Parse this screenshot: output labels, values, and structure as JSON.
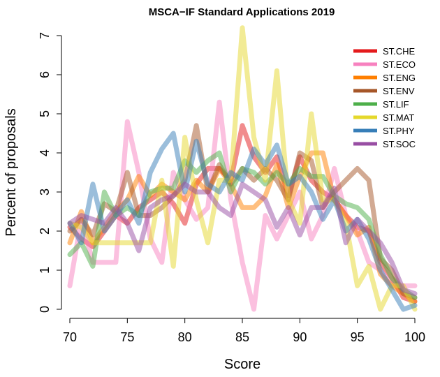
{
  "chart_data": {
    "type": "line",
    "title": "MSCA−IF Standard Applications 2019",
    "xlabel": "Score",
    "ylabel": "Percent of proposals",
    "xlim": [
      70,
      100
    ],
    "ylim": [
      0,
      7
    ],
    "x_ticks": [
      "70",
      "75",
      "80",
      "85",
      "90",
      "95",
      "100"
    ],
    "y_ticks": [
      "0",
      "1",
      "2",
      "3",
      "4",
      "5",
      "6",
      "7"
    ],
    "grid": false,
    "legend_position": "top-right",
    "x": [
      70,
      71,
      72,
      73,
      74,
      75,
      76,
      77,
      78,
      79,
      80,
      81,
      82,
      83,
      84,
      85,
      86,
      87,
      88,
      89,
      90,
      91,
      92,
      93,
      94,
      95,
      96,
      97,
      98,
      99,
      100
    ],
    "series": [
      {
        "name": "ST.CHE",
        "color": "#e41a1c",
        "values": [
          2.1,
          1.8,
          1.6,
          2.0,
          2.4,
          2.2,
          2.6,
          2.8,
          3.0,
          2.7,
          2.2,
          3.2,
          3.6,
          3.6,
          3.3,
          4.7,
          3.9,
          3.5,
          3.9,
          2.9,
          3.9,
          3.3,
          3.0,
          2.8,
          2.4,
          2.1,
          2.0,
          1.2,
          0.8,
          0.3,
          0.2
        ]
      },
      {
        "name": "ST.ECO",
        "color": "#f781bf",
        "values": [
          0.6,
          2.3,
          1.2,
          1.2,
          1.2,
          4.8,
          3.5,
          1.8,
          1.2,
          3.5,
          2.8,
          2.3,
          2.6,
          5.3,
          2.8,
          1.2,
          0.0,
          2.4,
          1.8,
          2.4,
          3.0,
          1.8,
          2.4,
          3.6,
          2.4,
          2.0,
          1.2,
          1.0,
          0.6,
          0.6,
          0.6
        ]
      },
      {
        "name": "ST.ENG",
        "color": "#ff7f00",
        "values": [
          1.7,
          2.5,
          1.7,
          2.1,
          2.5,
          2.8,
          3.4,
          2.9,
          3.2,
          3.0,
          2.8,
          3.3,
          3.0,
          3.6,
          3.2,
          2.6,
          2.6,
          2.9,
          3.7,
          2.6,
          3.4,
          4.0,
          4.0,
          2.8,
          2.4,
          1.9,
          2.1,
          0.9,
          0.6,
          0.4,
          0.2
        ]
      },
      {
        "name": "ST.ENV",
        "color": "#a65628",
        "values": [
          2.0,
          2.3,
          1.9,
          2.7,
          2.5,
          3.5,
          2.4,
          2.4,
          2.6,
          2.9,
          3.3,
          4.7,
          3.0,
          3.7,
          3.2,
          3.6,
          3.3,
          3.6,
          3.3,
          2.8,
          4.0,
          3.8,
          2.6,
          3.0,
          3.3,
          3.6,
          3.3,
          1.3,
          1.0,
          0.4,
          0.3
        ]
      },
      {
        "name": "ST.LIF",
        "color": "#4daf4a",
        "values": [
          1.4,
          1.7,
          1.1,
          3.0,
          2.4,
          2.6,
          2.4,
          3.0,
          3.1,
          3.1,
          3.8,
          3.5,
          3.8,
          4.0,
          3.0,
          3.6,
          3.5,
          3.2,
          3.5,
          3.2,
          3.6,
          3.4,
          3.4,
          2.9,
          2.7,
          2.6,
          2.3,
          1.4,
          0.8,
          0.5,
          0.3
        ]
      },
      {
        "name": "ST.MAT",
        "color": "#e5d82b",
        "values": [
          2.2,
          2.1,
          1.7,
          1.7,
          1.7,
          1.7,
          1.7,
          1.7,
          3.3,
          1.1,
          4.4,
          2.8,
          1.7,
          3.3,
          3.3,
          7.2,
          4.4,
          3.3,
          6.1,
          2.8,
          2.2,
          5.0,
          2.8,
          2.8,
          2.2,
          0.6,
          1.1,
          0.0,
          0.6,
          0.6,
          0.0
        ]
      },
      {
        "name": "ST.PHY",
        "color": "#377eb8",
        "values": [
          2.2,
          1.7,
          3.2,
          2.0,
          2.4,
          2.8,
          2.2,
          3.5,
          4.1,
          4.5,
          3.0,
          4.3,
          3.2,
          3.0,
          3.5,
          3.3,
          4.1,
          3.7,
          4.2,
          3.2,
          3.4,
          3.0,
          2.3,
          2.8,
          2.0,
          2.3,
          1.8,
          1.0,
          0.5,
          0.0,
          0.1
        ]
      },
      {
        "name": "ST.SOC",
        "color": "#984ea3",
        "values": [
          2.2,
          2.4,
          2.3,
          2.2,
          2.6,
          2.2,
          1.5,
          2.6,
          2.8,
          2.9,
          3.2,
          3.0,
          3.0,
          2.6,
          2.4,
          3.2,
          3.0,
          2.8,
          2.1,
          2.6,
          1.9,
          2.6,
          2.6,
          3.1,
          1.7,
          2.3,
          2.0,
          1.7,
          1.2,
          0.5,
          0.4
        ]
      }
    ]
  }
}
